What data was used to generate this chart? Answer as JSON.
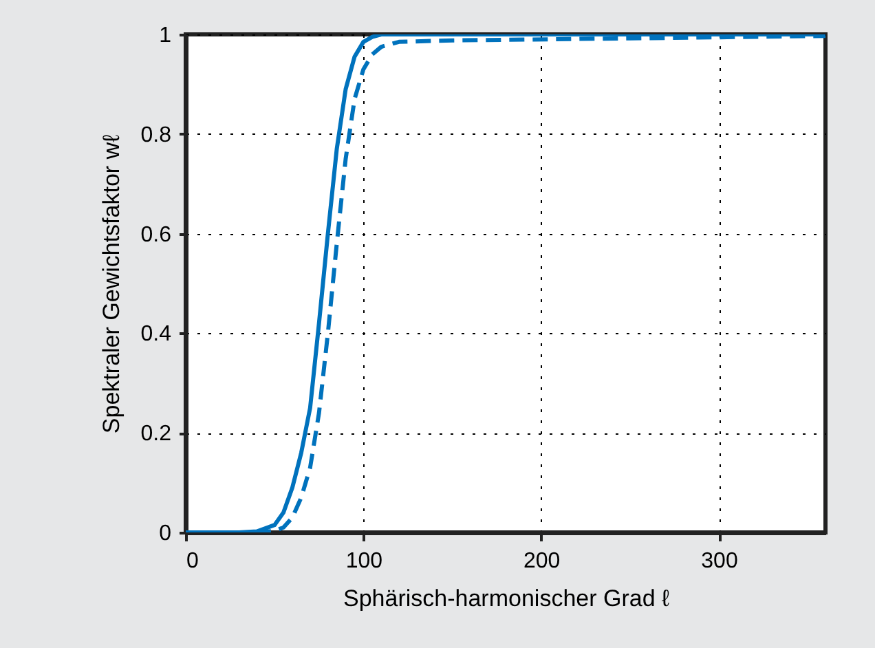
{
  "chart_data": {
    "type": "line",
    "xlabel": "Sphärisch-harmonischer Grad ℓ",
    "ylabel": "Spektraler Gewichtsfaktor wℓ",
    "xlim": [
      0,
      360
    ],
    "xticks": [
      0,
      100,
      200,
      300
    ],
    "ylim": [
      0,
      1
    ],
    "yticks": [
      0,
      0.2,
      0.4,
      0.6,
      0.8,
      1
    ],
    "grid": true,
    "marker": "none",
    "series": [
      {
        "color": "#0072bd",
        "line_style": "solid",
        "x": [
          0,
          30,
          40,
          50,
          55,
          60,
          65,
          70,
          75,
          80,
          85,
          90,
          95,
          100,
          105,
          110,
          120,
          360
        ],
        "values": [
          0,
          0,
          0.002,
          0.015,
          0.04,
          0.09,
          0.16,
          0.25,
          0.42,
          0.6,
          0.77,
          0.89,
          0.955,
          0.985,
          0.995,
          1,
          1,
          1
        ]
      },
      {
        "color": "#0072bd",
        "line_style": "dashed",
        "x": [
          0,
          40,
          50,
          55,
          60,
          65,
          70,
          75,
          80,
          85,
          90,
          95,
          100,
          105,
          110,
          120,
          150,
          250,
          360
        ],
        "values": [
          0,
          0,
          0.003,
          0.01,
          0.03,
          0.07,
          0.13,
          0.24,
          0.4,
          0.58,
          0.75,
          0.87,
          0.93,
          0.96,
          0.975,
          0.985,
          0.988,
          0.992,
          0.997
        ]
      }
    ]
  }
}
